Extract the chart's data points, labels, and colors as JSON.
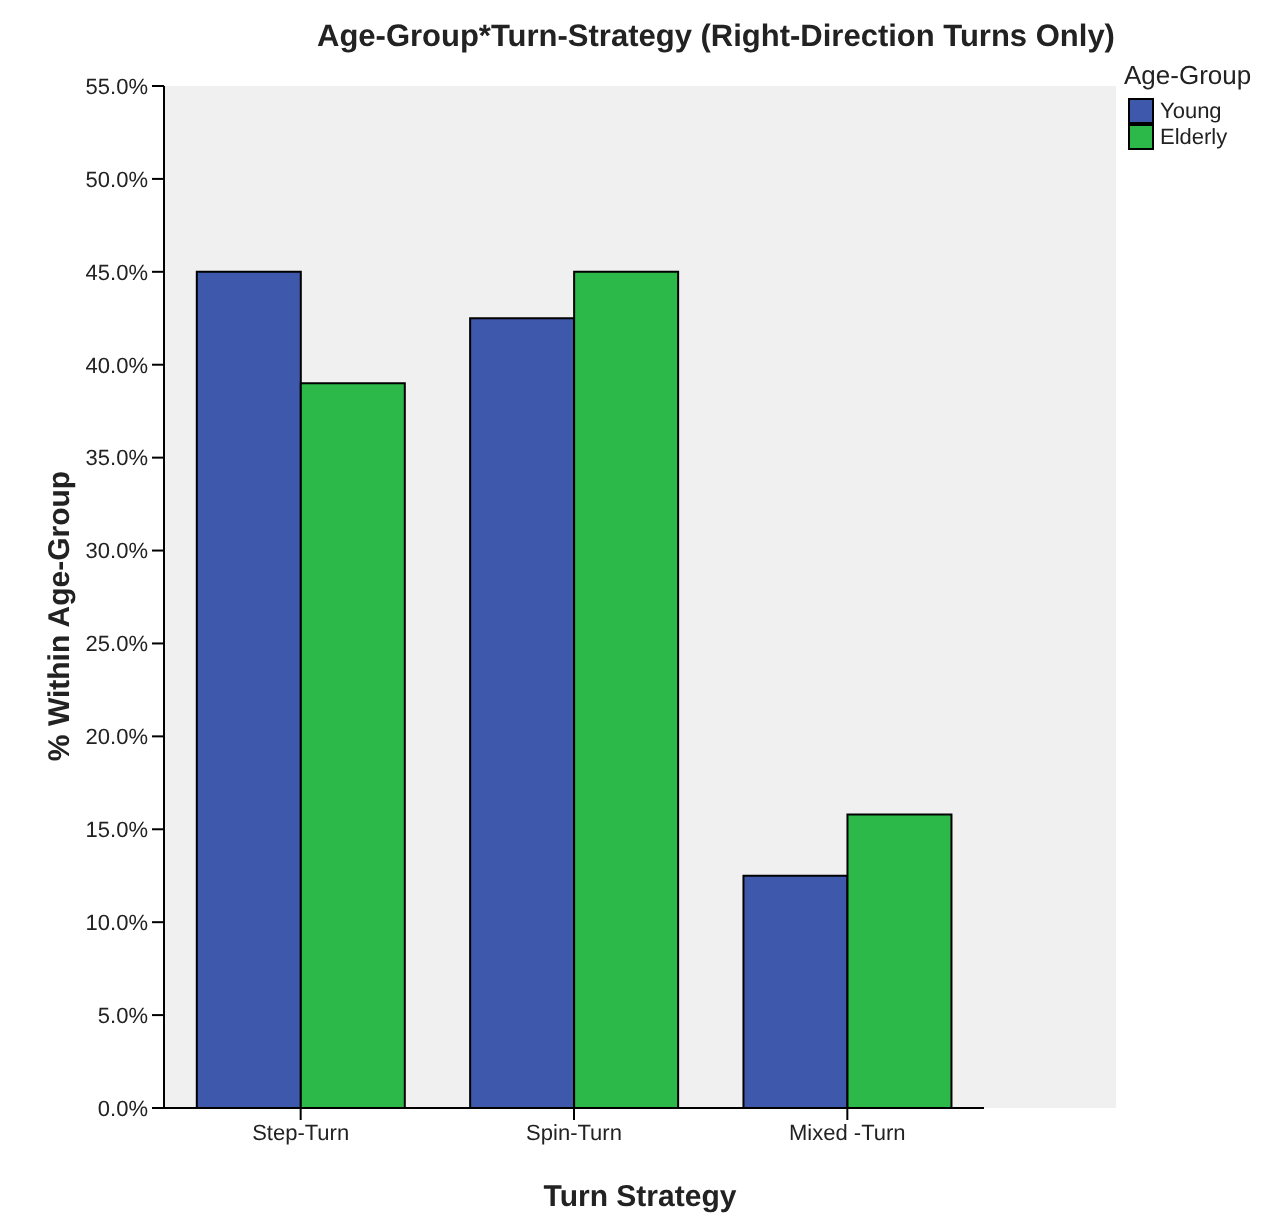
{
  "chart_data": {
    "type": "bar",
    "title": "Age-Group*Turn-Strategy (Right-Direction Turns Only)",
    "xlabel": "Turn Strategy",
    "ylabel": "% Within Age-Group",
    "legend_title": "Age-Group",
    "categories": [
      "Step-Turn",
      "Spin-Turn",
      "Mixed -Turn"
    ],
    "series": [
      {
        "name": "Young",
        "color": "#3e58ac",
        "values": [
          45.0,
          42.5,
          12.5
        ]
      },
      {
        "name": "Elderly",
        "color": "#2db84a",
        "values": [
          39.0,
          45.0,
          15.8
        ]
      }
    ],
    "ylim": [
      0,
      55
    ],
    "yticks": [
      {
        "value": 0,
        "label": "0.0%"
      },
      {
        "value": 5,
        "label": "5.0%"
      },
      {
        "value": 10,
        "label": "10.0%"
      },
      {
        "value": 15,
        "label": "15.0%"
      },
      {
        "value": 20,
        "label": "20.0%"
      },
      {
        "value": 25,
        "label": "25.0%"
      },
      {
        "value": 30,
        "label": "30.0%"
      },
      {
        "value": 35,
        "label": "35.0%"
      },
      {
        "value": 40,
        "label": "40.0%"
      },
      {
        "value": 45,
        "label": "45.0%"
      },
      {
        "value": 50,
        "label": "50.0%"
      },
      {
        "value": 55,
        "label": "55.0%"
      }
    ],
    "grid": false,
    "legend": "top right"
  }
}
